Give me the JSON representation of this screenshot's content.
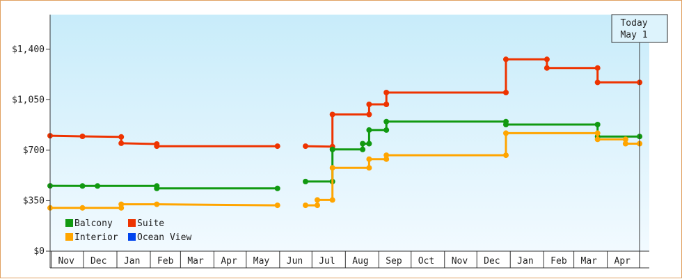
{
  "chart_data": {
    "type": "line",
    "step": true,
    "title": "",
    "xlabel": "",
    "ylabel": "",
    "ylim": [
      0,
      1640
    ],
    "yticks": [
      0,
      350,
      700,
      1050,
      1400
    ],
    "ytick_labels": [
      "$0",
      "$350",
      "$700",
      "$1,050",
      "$1,400"
    ],
    "x_range": [
      "2020-10-31",
      "2022-05-10"
    ],
    "month_labels": [
      {
        "label": "Nov",
        "date": "2020-11-15"
      },
      {
        "label": "Dec",
        "date": "2020-12-15"
      },
      {
        "label": "Jan",
        "date": "2021-01-15"
      },
      {
        "label": "Feb",
        "date": "2021-02-15"
      },
      {
        "label": "Mar",
        "date": "2021-03-15"
      },
      {
        "label": "Apr",
        "date": "2021-04-15"
      },
      {
        "label": "May",
        "date": "2021-05-15"
      },
      {
        "label": "Jun",
        "date": "2021-06-15"
      },
      {
        "label": "Jul",
        "date": "2021-07-15"
      },
      {
        "label": "Aug",
        "date": "2021-08-15"
      },
      {
        "label": "Sep",
        "date": "2021-09-15"
      },
      {
        "label": "Oct",
        "date": "2021-10-15"
      },
      {
        "label": "Nov",
        "date": "2021-11-15"
      },
      {
        "label": "Dec",
        "date": "2021-12-15"
      },
      {
        "label": "Jan",
        "date": "2022-01-15"
      },
      {
        "label": "Feb",
        "date": "2022-02-15"
      },
      {
        "label": "Mar",
        "date": "2022-03-15"
      },
      {
        "label": "Apr",
        "date": "2022-04-15"
      }
    ],
    "month_boundaries": [
      "2020-11-01",
      "2020-12-01",
      "2021-01-01",
      "2021-02-01",
      "2021-03-01",
      "2021-04-01",
      "2021-05-01",
      "2021-06-01",
      "2021-07-01",
      "2021-08-01",
      "2021-09-01",
      "2021-10-01",
      "2021-11-01",
      "2021-12-01",
      "2022-01-01",
      "2022-02-01",
      "2022-03-01",
      "2022-04-01",
      "2022-05-01"
    ],
    "today": {
      "line1": "Today",
      "line2": "May 1",
      "date": "2022-05-01"
    },
    "legend": [
      {
        "name": "Balcony",
        "color": "#119911"
      },
      {
        "name": "Suite",
        "color": "#ee3300"
      },
      {
        "name": "Interior",
        "color": "#ffa500"
      },
      {
        "name": "Ocean View",
        "color": "#0044ee"
      }
    ],
    "legend_position": "bottom-left",
    "series": [
      {
        "name": "Suite",
        "color": "#ee3300",
        "segments": [
          [
            {
              "x": "2020-10-31",
              "y": 800
            },
            {
              "x": "2020-11-30",
              "y": 796
            },
            {
              "x": "2021-01-05",
              "y": 792
            },
            {
              "x": "2021-01-05",
              "y": 748
            },
            {
              "x": "2021-02-07",
              "y": 743
            },
            {
              "x": "2021-02-07",
              "y": 728
            },
            {
              "x": "2021-05-30",
              "y": 728
            }
          ],
          [
            {
              "x": "2021-06-25",
              "y": 728
            },
            {
              "x": "2021-07-20",
              "y": 725
            },
            {
              "x": "2021-07-20",
              "y": 948
            },
            {
              "x": "2021-08-23",
              "y": 948
            },
            {
              "x": "2021-08-23",
              "y": 1018
            },
            {
              "x": "2021-09-08",
              "y": 1018
            },
            {
              "x": "2021-09-08",
              "y": 1100
            },
            {
              "x": "2021-12-28",
              "y": 1100
            },
            {
              "x": "2021-12-28",
              "y": 1330
            },
            {
              "x": "2022-02-04",
              "y": 1330
            },
            {
              "x": "2022-02-04",
              "y": 1270
            },
            {
              "x": "2022-03-23",
              "y": 1270
            },
            {
              "x": "2022-03-23",
              "y": 1170
            },
            {
              "x": "2022-05-01",
              "y": 1170
            }
          ]
        ]
      },
      {
        "name": "Balcony",
        "color": "#119911",
        "segments": [
          [
            {
              "x": "2020-10-31",
              "y": 453
            },
            {
              "x": "2020-11-30",
              "y": 452
            },
            {
              "x": "2020-12-14",
              "y": 452
            },
            {
              "x": "2021-02-07",
              "y": 452
            },
            {
              "x": "2021-02-07",
              "y": 435
            },
            {
              "x": "2021-05-30",
              "y": 435
            }
          ],
          [
            {
              "x": "2021-06-25",
              "y": 483
            },
            {
              "x": "2021-07-20",
              "y": 483
            },
            {
              "x": "2021-07-20",
              "y": 705
            },
            {
              "x": "2021-08-17",
              "y": 705
            },
            {
              "x": "2021-08-17",
              "y": 745
            },
            {
              "x": "2021-08-23",
              "y": 745
            },
            {
              "x": "2021-08-23",
              "y": 840
            },
            {
              "x": "2021-09-08",
              "y": 840
            },
            {
              "x": "2021-09-08",
              "y": 898
            },
            {
              "x": "2021-12-28",
              "y": 898
            },
            {
              "x": "2021-12-28",
              "y": 878
            },
            {
              "x": "2022-03-23",
              "y": 878
            },
            {
              "x": "2022-03-23",
              "y": 795
            },
            {
              "x": "2022-05-01",
              "y": 795
            }
          ]
        ]
      },
      {
        "name": "Interior",
        "color": "#ffa500",
        "segments": [
          [
            {
              "x": "2020-10-31",
              "y": 300
            },
            {
              "x": "2020-11-30",
              "y": 300
            },
            {
              "x": "2021-01-05",
              "y": 300
            },
            {
              "x": "2021-01-05",
              "y": 325
            },
            {
              "x": "2021-02-07",
              "y": 325
            },
            {
              "x": "2021-05-30",
              "y": 318
            }
          ],
          [
            {
              "x": "2021-06-25",
              "y": 318
            },
            {
              "x": "2021-07-06",
              "y": 318
            },
            {
              "x": "2021-07-06",
              "y": 355
            },
            {
              "x": "2021-07-20",
              "y": 355
            },
            {
              "x": "2021-07-20",
              "y": 578
            },
            {
              "x": "2021-08-23",
              "y": 578
            },
            {
              "x": "2021-08-23",
              "y": 638
            },
            {
              "x": "2021-09-08",
              "y": 638
            },
            {
              "x": "2021-09-08",
              "y": 665
            },
            {
              "x": "2021-12-28",
              "y": 665
            },
            {
              "x": "2021-12-28",
              "y": 818
            },
            {
              "x": "2022-03-23",
              "y": 818
            },
            {
              "x": "2022-03-23",
              "y": 775
            },
            {
              "x": "2022-04-18",
              "y": 775
            },
            {
              "x": "2022-04-18",
              "y": 745
            },
            {
              "x": "2022-05-01",
              "y": 745
            }
          ]
        ]
      },
      {
        "name": "Ocean View",
        "color": "#0044ee",
        "segments": []
      }
    ]
  }
}
